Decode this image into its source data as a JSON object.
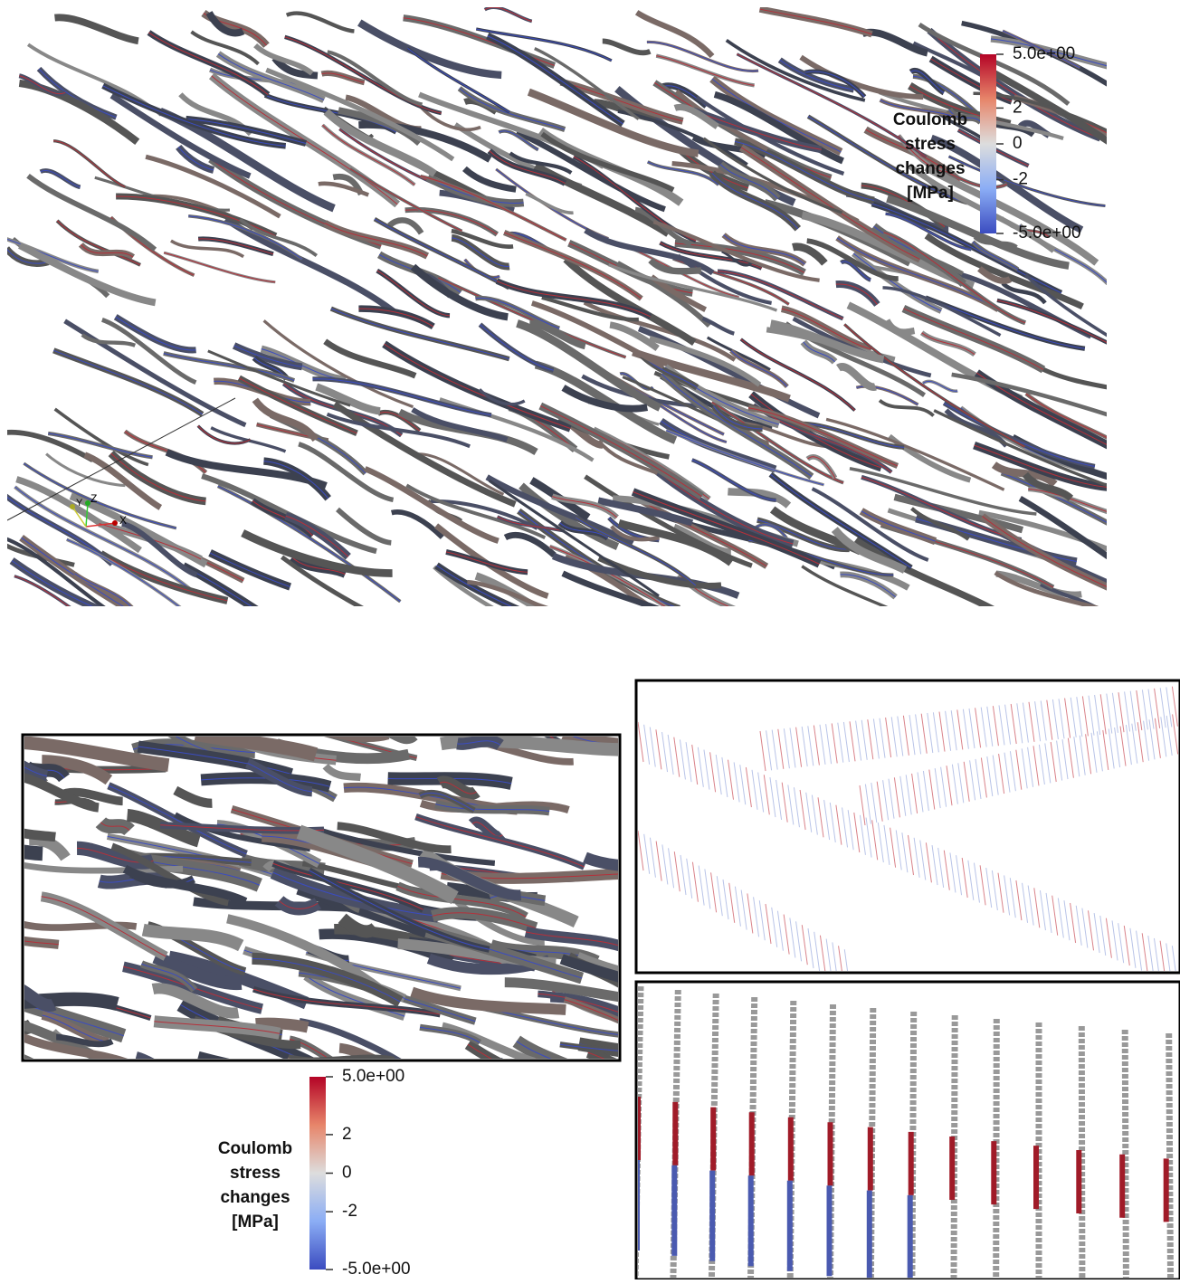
{
  "colorbars": [
    {
      "title_lines": [
        "Coulomb",
        "stress",
        "changes",
        "[MPa]"
      ],
      "range": [
        -5,
        5
      ],
      "ticks": [
        {
          "value": 5,
          "label": "5.0e+00"
        },
        2,
        0,
        -2,
        {
          "value": -5,
          "label": "-5.0e+00"
        }
      ]
    },
    {
      "title_lines": [
        "Coulomb",
        "stress",
        "changes",
        "[MPa]"
      ],
      "range": [
        -5,
        5
      ],
      "ticks": [
        {
          "value": 5,
          "label": "5.0e+00"
        },
        2,
        0,
        -2,
        {
          "value": -5,
          "label": "-5.0e+00"
        }
      ]
    }
  ],
  "orientation_axes": {
    "x": "X",
    "y": "Y",
    "z": "Z"
  }
}
